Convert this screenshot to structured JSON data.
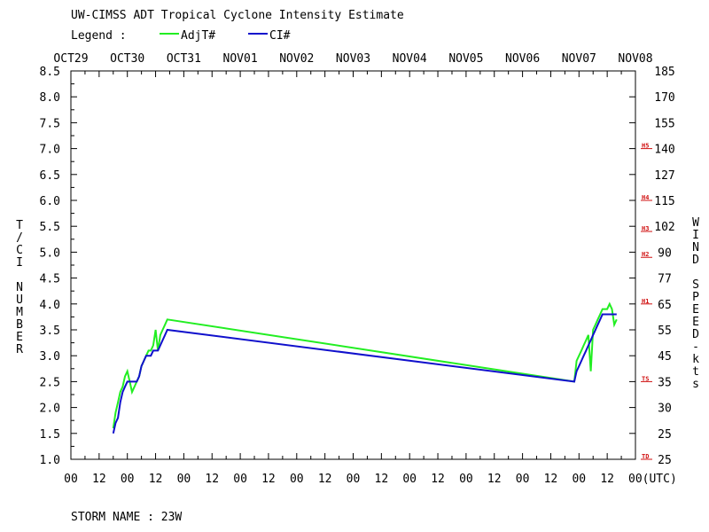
{
  "title": "UW-CIMSS ADT Tropical Cyclone Intensity Estimate",
  "legend": {
    "label": "Legend :",
    "entries": [
      {
        "name": "AdjT#",
        "color": "#22ee22"
      },
      {
        "name": "CI#",
        "color": "#1010cc"
      }
    ]
  },
  "storm_name": "STORM NAME : 23W",
  "chart_data": {
    "type": "line",
    "date_labels": [
      "OCT29",
      "OCT30",
      "OCT31",
      "NOV01",
      "NOV02",
      "NOV03",
      "NOV04",
      "NOV05",
      "NOV06",
      "NOV07",
      "NOV08"
    ],
    "hour_labels": [
      "00",
      "12",
      "00",
      "12",
      "00",
      "12",
      "00",
      "12",
      "00",
      "12",
      "00",
      "12",
      "00",
      "12",
      "00",
      "12",
      "00",
      "12",
      "00",
      "12",
      "00(UTC)"
    ],
    "xlabel_unit": "(UTC)",
    "xlim": [
      "OCT29 00",
      "NOV08 00"
    ],
    "ylabel_left": "T/CI NUMBER",
    "ylim": [
      1.0,
      8.5
    ],
    "yticks_left": [
      "1.0",
      "1.5",
      "2.0",
      "2.5",
      "3.0",
      "3.5",
      "4.0",
      "4.5",
      "5.0",
      "5.5",
      "6.0",
      "6.5",
      "7.0",
      "7.5",
      "8.0",
      "8.5"
    ],
    "ylabel_right": "WIND SPEED-kts",
    "yticks_right": [
      "25",
      "25",
      "30",
      "35",
      "45",
      "55",
      "65",
      "77",
      "90",
      "102",
      "115",
      "127",
      "140",
      "155",
      "170",
      "185"
    ],
    "category_markers": [
      {
        "label": "TD",
        "value": 1.0
      },
      {
        "label": "TS",
        "value": 2.5
      },
      {
        "label": "H1",
        "value": 4.0
      },
      {
        "label": "H2",
        "value": 4.9
      },
      {
        "label": "H3",
        "value": 5.4
      },
      {
        "label": "H4",
        "value": 6.0
      },
      {
        "label": "H5",
        "value": 7.0
      }
    ],
    "series": [
      {
        "name": "AdjT#",
        "color": "#22ee22",
        "points": [
          [
            "OCT29 18:00",
            1.6
          ],
          [
            "OCT29 19:00",
            1.9
          ],
          [
            "OCT29 20:00",
            2.1
          ],
          [
            "OCT29 21:00",
            2.3
          ],
          [
            "OCT29 22:00",
            2.4
          ],
          [
            "OCT29 23:00",
            2.6
          ],
          [
            "OCT30 00:00",
            2.7
          ],
          [
            "OCT30 01:00",
            2.5
          ],
          [
            "OCT30 02:00",
            2.3
          ],
          [
            "OCT30 03:00",
            2.4
          ],
          [
            "OCT30 04:00",
            2.5
          ],
          [
            "OCT30 05:00",
            2.6
          ],
          [
            "OCT30 06:00",
            2.8
          ],
          [
            "OCT30 07:00",
            2.9
          ],
          [
            "OCT30 08:00",
            3.0
          ],
          [
            "OCT30 09:00",
            3.1
          ],
          [
            "OCT30 10:00",
            3.1
          ],
          [
            "OCT30 11:00",
            3.2
          ],
          [
            "OCT30 12:00",
            3.5
          ],
          [
            "OCT30 13:00",
            3.1
          ],
          [
            "OCT30 14:00",
            3.4
          ],
          [
            "OCT30 15:00",
            3.5
          ],
          [
            "OCT30 16:00",
            3.6
          ],
          [
            "OCT30 17:00",
            3.7
          ],
          [
            "NOV06 22:00",
            2.5
          ],
          [
            "NOV06 23:00",
            2.9
          ],
          [
            "NOV07 00:00",
            3.0
          ],
          [
            "NOV07 01:00",
            3.1
          ],
          [
            "NOV07 02:00",
            3.2
          ],
          [
            "NOV07 03:00",
            3.3
          ],
          [
            "NOV07 04:00",
            3.4
          ],
          [
            "NOV07 05:00",
            2.7
          ],
          [
            "NOV07 06:00",
            3.5
          ],
          [
            "NOV07 07:00",
            3.6
          ],
          [
            "NOV07 08:00",
            3.7
          ],
          [
            "NOV07 09:00",
            3.8
          ],
          [
            "NOV07 10:00",
            3.9
          ],
          [
            "NOV07 11:00",
            3.9
          ],
          [
            "NOV07 12:00",
            3.9
          ],
          [
            "NOV07 13:00",
            4.0
          ],
          [
            "NOV07 14:00",
            3.9
          ],
          [
            "NOV07 15:00",
            3.6
          ],
          [
            "NOV07 16:00",
            3.7
          ]
        ]
      },
      {
        "name": "CI#",
        "color": "#1010cc",
        "points": [
          [
            "OCT29 18:00",
            1.5
          ],
          [
            "OCT29 19:00",
            1.7
          ],
          [
            "OCT29 20:00",
            1.8
          ],
          [
            "OCT29 21:00",
            2.1
          ],
          [
            "OCT29 22:00",
            2.3
          ],
          [
            "OCT29 23:00",
            2.4
          ],
          [
            "OCT30 00:00",
            2.5
          ],
          [
            "OCT30 01:00",
            2.5
          ],
          [
            "OCT30 02:00",
            2.5
          ],
          [
            "OCT30 03:00",
            2.5
          ],
          [
            "OCT30 04:00",
            2.5
          ],
          [
            "OCT30 05:00",
            2.6
          ],
          [
            "OCT30 06:00",
            2.8
          ],
          [
            "OCT30 07:00",
            2.9
          ],
          [
            "OCT30 08:00",
            3.0
          ],
          [
            "OCT30 09:00",
            3.0
          ],
          [
            "OCT30 10:00",
            3.0
          ],
          [
            "OCT30 11:00",
            3.1
          ],
          [
            "OCT30 12:00",
            3.1
          ],
          [
            "OCT30 13:00",
            3.1
          ],
          [
            "OCT30 14:00",
            3.2
          ],
          [
            "OCT30 15:00",
            3.3
          ],
          [
            "OCT30 16:00",
            3.4
          ],
          [
            "OCT30 17:00",
            3.5
          ],
          [
            "NOV06 22:00",
            2.5
          ],
          [
            "NOV06 23:00",
            2.7
          ],
          [
            "NOV07 00:00",
            2.8
          ],
          [
            "NOV07 01:00",
            2.9
          ],
          [
            "NOV07 02:00",
            3.0
          ],
          [
            "NOV07 03:00",
            3.1
          ],
          [
            "NOV07 04:00",
            3.2
          ],
          [
            "NOV07 05:00",
            3.3
          ],
          [
            "NOV07 06:00",
            3.4
          ],
          [
            "NOV07 07:00",
            3.5
          ],
          [
            "NOV07 08:00",
            3.6
          ],
          [
            "NOV07 09:00",
            3.7
          ],
          [
            "NOV07 10:00",
            3.8
          ],
          [
            "NOV07 11:00",
            3.8
          ],
          [
            "NOV07 12:00",
            3.8
          ],
          [
            "NOV07 13:00",
            3.8
          ],
          [
            "NOV07 14:00",
            3.8
          ],
          [
            "NOV07 15:00",
            3.8
          ],
          [
            "NOV07 16:00",
            3.8
          ]
        ]
      }
    ]
  }
}
